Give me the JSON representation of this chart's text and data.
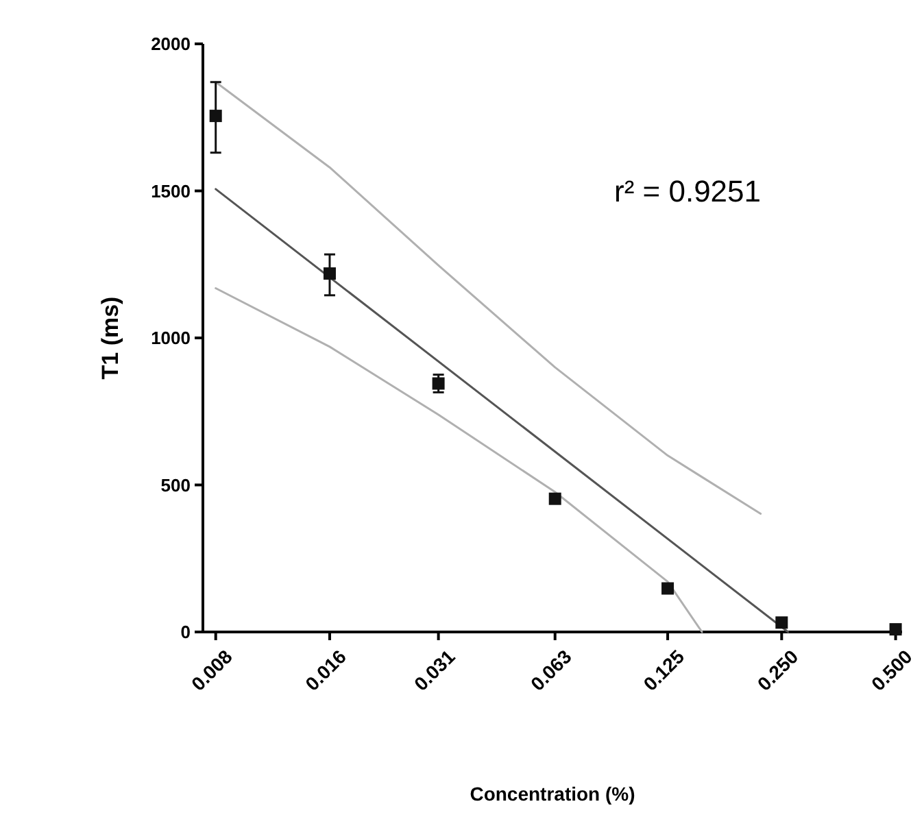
{
  "chart_data": {
    "type": "scatter",
    "xlabel": "Concentration (%)",
    "ylabel": "T1 (ms)",
    "log": "x",
    "xlim": [
      0.0074,
      0.52
    ],
    "ylim": [
      0,
      2000
    ],
    "xticks": [
      0.008,
      0.016,
      0.031,
      0.063,
      0.125,
      {
        "value": 0.25,
        "label": "0.250"
      },
      {
        "value": 0.5,
        "label": "0.500"
      }
    ],
    "yticks": [
      0,
      500,
      1000,
      1500,
      2000
    ],
    "grid": false,
    "annotations": [
      "r² = 0.9251"
    ],
    "series": [
      {
        "type": "line",
        "color": "#555555",
        "x": [
          0.008,
          0.26
        ],
        "values": [
          1506,
          0
        ],
        "marker": "none"
      },
      {
        "type": "line",
        "color": "#b0b0b0",
        "x": [
          0.008,
          0.016,
          0.031,
          0.063,
          0.125,
          0.22
        ],
        "values": [
          1870,
          1580,
          1247,
          900,
          600,
          402
        ],
        "marker": "none"
      },
      {
        "type": "line",
        "color": "#b0b0b0",
        "x": [
          0.008,
          0.016,
          0.031,
          0.063,
          0.125,
          0.154
        ],
        "values": [
          1169,
          970,
          739,
          476,
          171,
          0
        ],
        "marker": "none"
      },
      {
        "color": "#111111",
        "marker": "square",
        "x": [
          0.008,
          0.016,
          0.031,
          0.063,
          0.125,
          0.25,
          0.5
        ],
        "values": [
          1755,
          1219,
          845,
          453,
          148,
          32,
          9
        ],
        "errors": [
          [
            1630,
            1870
          ],
          [
            1145,
            1284
          ],
          [
            815,
            875
          ],
          null,
          null,
          [
            20,
            45
          ],
          null
        ]
      }
    ]
  }
}
